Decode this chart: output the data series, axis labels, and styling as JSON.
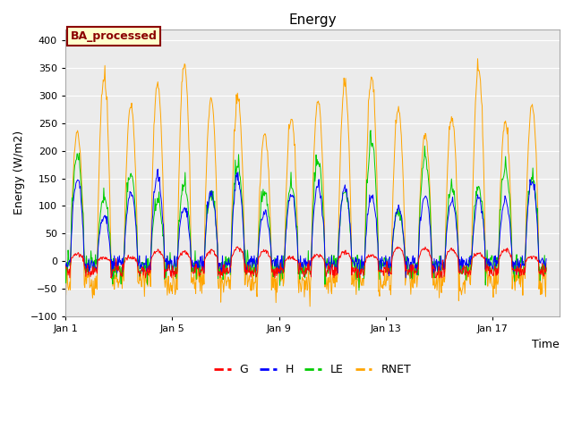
{
  "title": "Energy",
  "xlabel": "Time",
  "ylabel": "Energy (W/m2)",
  "ylim": [
    -100,
    420
  ],
  "xlim_days": 18.5,
  "colors": {
    "G": "#ff0000",
    "H": "#0000ff",
    "LE": "#00cc00",
    "RNET": "#ffa500"
  },
  "annotation_text": "BA_processed",
  "background_color": "#ebebeb",
  "fig_background": "#ffffff",
  "n_days": 18,
  "points_per_day": 48,
  "yticks": [
    -100,
    -50,
    0,
    50,
    100,
    150,
    200,
    250,
    300,
    350,
    400
  ],
  "xtick_positions": [
    0,
    4,
    8,
    12,
    16
  ],
  "xtick_labels": [
    "Jan 1",
    "Jan 5",
    "Jan 9",
    "Jan 13",
    "Jan 17"
  ]
}
